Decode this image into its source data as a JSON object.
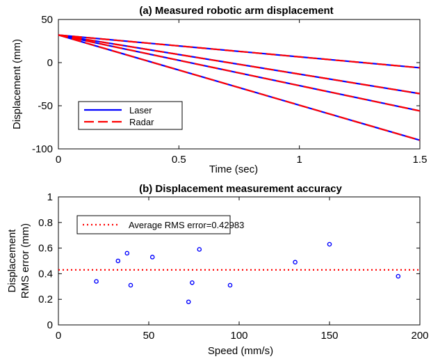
{
  "chart_data": [
    {
      "type": "line",
      "title": "(a) Measured robotic arm displacement",
      "xlabel": "Time (sec)",
      "ylabel": "Displacement (mm)",
      "xlim": [
        0,
        1.5
      ],
      "ylim": [
        -100,
        50
      ],
      "xticks": [
        0,
        0.5,
        1,
        1.5
      ],
      "xtick_labels": [
        "0",
        "0.5",
        "1",
        "1.5"
      ],
      "yticks": [
        -100,
        -50,
        0,
        50
      ],
      "ytick_labels": [
        "-100",
        "-50",
        "0",
        "50"
      ],
      "grid": false,
      "legend": {
        "location": "lower-left",
        "entries": [
          "Laser",
          "Radar"
        ]
      },
      "series": [
        {
          "name": "Laser",
          "color": "#0000ff",
          "style": "solid",
          "lines": [
            {
              "x": [
                0,
                1.5
              ],
              "y": [
                32,
                -6
              ]
            },
            {
              "x": [
                0,
                1.5
              ],
              "y": [
                32,
                -36
              ]
            },
            {
              "x": [
                0,
                1.5
              ],
              "y": [
                32,
                -56
              ]
            },
            {
              "x": [
                0,
                1.5
              ],
              "y": [
                32,
                -90
              ]
            }
          ]
        },
        {
          "name": "Radar",
          "color": "#ff0000",
          "style": "dashed",
          "lines": [
            {
              "x": [
                0,
                1.5
              ],
              "y": [
                32,
                -6
              ]
            },
            {
              "x": [
                0,
                1.5
              ],
              "y": [
                32,
                -36
              ]
            },
            {
              "x": [
                0,
                1.5
              ],
              "y": [
                32,
                -56
              ]
            },
            {
              "x": [
                0,
                1.5
              ],
              "y": [
                32,
                -90
              ]
            }
          ]
        }
      ]
    },
    {
      "type": "scatter",
      "title": "(b) Displacement measurement accuracy",
      "xlabel": "Speed (mm/s)",
      "ylabel_lines": [
        "Displacement",
        "RMS error (mm)"
      ],
      "xlim": [
        0,
        200
      ],
      "ylim": [
        0,
        1
      ],
      "xticks": [
        0,
        50,
        100,
        150,
        200
      ],
      "xtick_labels": [
        "0",
        "50",
        "100",
        "150",
        "200"
      ],
      "yticks": [
        0,
        0.2,
        0.4,
        0.6,
        0.8,
        1
      ],
      "ytick_labels": [
        "0",
        "0.2",
        "0.4",
        "0.6",
        "0.8",
        "1"
      ],
      "grid": false,
      "marker_color": "#0000ff",
      "points": [
        {
          "x": 21,
          "y": 0.34
        },
        {
          "x": 33,
          "y": 0.5
        },
        {
          "x": 38,
          "y": 0.56
        },
        {
          "x": 40,
          "y": 0.31
        },
        {
          "x": 52,
          "y": 0.53
        },
        {
          "x": 72,
          "y": 0.18
        },
        {
          "x": 74,
          "y": 0.33
        },
        {
          "x": 78,
          "y": 0.59
        },
        {
          "x": 95,
          "y": 0.31
        },
        {
          "x": 131,
          "y": 0.49
        },
        {
          "x": 150,
          "y": 0.63
        },
        {
          "x": 188,
          "y": 0.38
        }
      ],
      "reference_line": {
        "y": 0.42983,
        "color": "#ff0000",
        "style": "dotted",
        "label": "Average RMS error=0.42983"
      },
      "legend": {
        "location": "top-left",
        "entries": [
          "Average RMS error=0.42983"
        ]
      }
    }
  ]
}
